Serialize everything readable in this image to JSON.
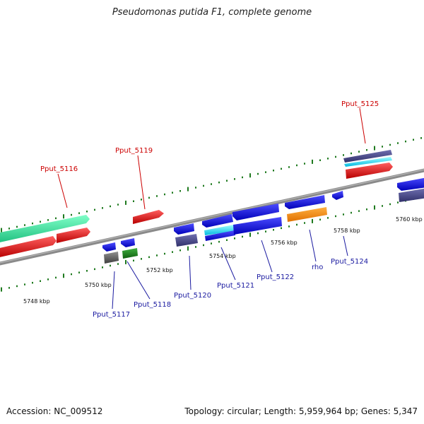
{
  "title": "Pseudomonas putida F1, complete genome",
  "footer": {
    "accession": "Accession: NC_009512",
    "summary": "Topology: circular; Length: 5,959,964 bp; Genes: 5,347"
  },
  "colors": {
    "backbone": "#8a8a8a",
    "tick": "#1f7a1f",
    "label_top": "#cc0000",
    "label_bottom": "#1a1aa0"
  },
  "tick_labels": [
    "5748 kbp",
    "5750 kbp",
    "5752 kbp",
    "5754 kbp",
    "5756 kbp",
    "5758 kbp",
    "5760 kbp"
  ],
  "gene_labels": {
    "top": [
      "Pput_5116",
      "Pput_5119",
      "Pput_5125"
    ],
    "bottom": [
      "Pput_5117",
      "Pput_5118",
      "Pput_5120",
      "Pput_5121",
      "Pput_5122",
      "rho",
      "Pput_5124"
    ]
  }
}
